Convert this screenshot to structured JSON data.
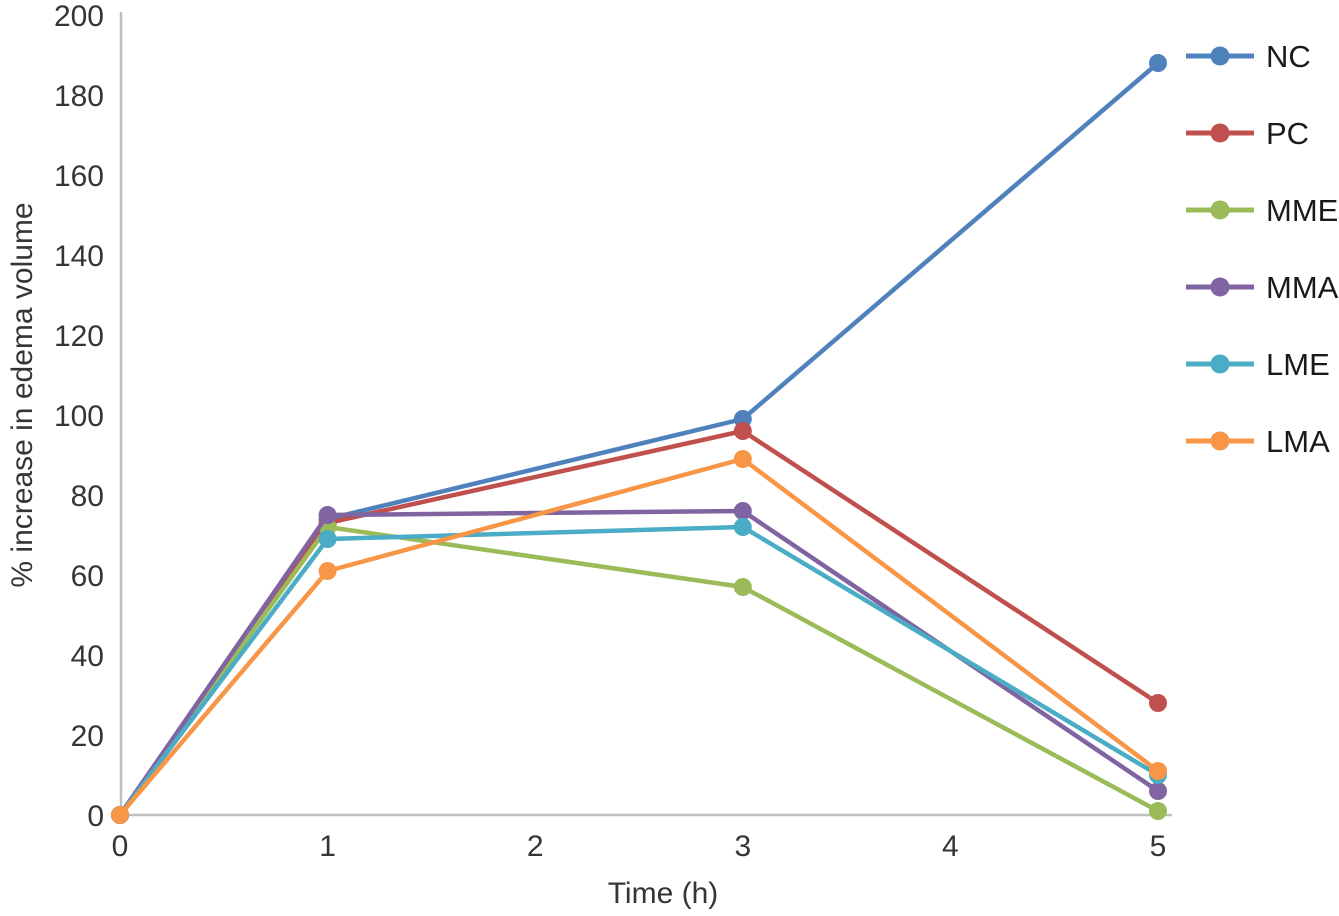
{
  "chart_data": {
    "type": "line",
    "title": "",
    "xlabel": "Time (h)",
    "ylabel": "% increase in edema volume",
    "x": [
      0,
      1,
      3,
      5
    ],
    "xlim": [
      0,
      5
    ],
    "ylim": [
      0,
      200
    ],
    "xticks": [
      0,
      1,
      2,
      3,
      4,
      5
    ],
    "yticks": [
      0,
      20,
      40,
      60,
      80,
      100,
      120,
      140,
      160,
      180,
      200
    ],
    "grid": false,
    "legend_position": "right",
    "series": [
      {
        "name": "NC",
        "color": "#4F81BD",
        "values": [
          0,
          74,
          99,
          188
        ]
      },
      {
        "name": "PC",
        "color": "#C0504D",
        "values": [
          0,
          73,
          96,
          28
        ]
      },
      {
        "name": "MME",
        "color": "#9BBB59",
        "values": [
          0,
          72,
          57,
          1
        ]
      },
      {
        "name": "MMA",
        "color": "#8064A2",
        "values": [
          0,
          75,
          76,
          6
        ]
      },
      {
        "name": "LME",
        "color": "#4BACC6",
        "values": [
          0,
          69,
          72,
          10
        ]
      },
      {
        "name": "LMA",
        "color": "#F79646",
        "values": [
          0,
          61,
          89,
          11
        ]
      }
    ],
    "axis_color": "#BFBFBF",
    "text_color": "#353535",
    "legend_text_color": "#1a1a1a"
  }
}
